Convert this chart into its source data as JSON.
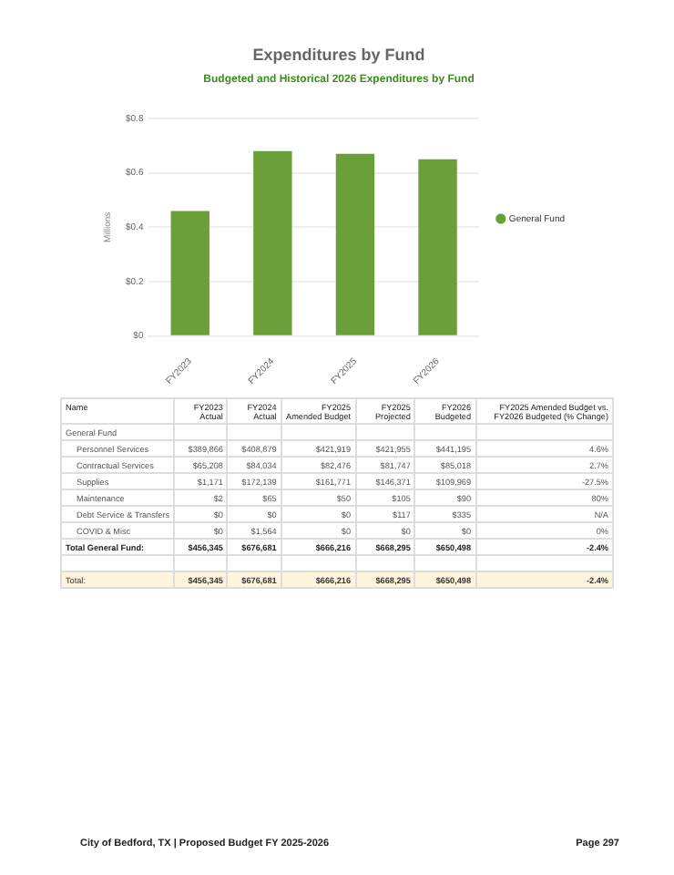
{
  "chart_data": [
    {
      "type": "bar",
      "title": "Expenditures by Fund",
      "subtitle": "Budgeted and Historical 2026 Expenditures by Fund",
      "ylabel": "Millions",
      "categories": [
        "FY2023",
        "FY2024",
        "FY2025",
        "FY2026"
      ],
      "series": [
        {
          "name": "General Fund",
          "color": "#6a9f3a",
          "values": [
            0.46,
            0.68,
            0.67,
            0.65
          ]
        }
      ],
      "ylim": [
        0,
        0.8
      ],
      "yticks": [
        {
          "value": 0,
          "label": "$0"
        },
        {
          "value": 0.2,
          "label": "$0.2"
        },
        {
          "value": 0.4,
          "label": "$0.4"
        },
        {
          "value": 0.6,
          "label": "$0.6"
        },
        {
          "value": 0.8,
          "label": "$0.8"
        }
      ],
      "grid": "y",
      "legend": "right"
    },
    {
      "type": "other",
      "categories": [
        "Name",
        "FY2023 Actual",
        "FY2024 Actual",
        "FY2025 Amended Budget",
        "FY2025 Projected",
        "FY2026 Budgeted",
        "FY2025 Amended Budget vs. FY2026 Budgeted (% Change)"
      ],
      "y_categories": [
        "General Fund",
        "Personnel Services",
        "Contractual Services",
        "Supplies",
        "Maintenance",
        "Debt Service & Transfers",
        "COVID & Misc",
        "Total General Fund:",
        null,
        "Total:"
      ],
      "cell_labels": [
        [
          null,
          null,
          null,
          null,
          null,
          null
        ],
        [
          "$389,866",
          "$408,879",
          "$421,919",
          "$421,955",
          "$441,195",
          "4.6%"
        ],
        [
          "$65,208",
          "$84,034",
          "$82,476",
          "$81,747",
          "$85,018",
          "2.7%"
        ],
        [
          "$1,171",
          "$172,139",
          "$161,771",
          "$146,371",
          "$109,969",
          "-27.5%"
        ],
        [
          "$2",
          "$65",
          "$50",
          "$105",
          "$90",
          "80%"
        ],
        [
          "$0",
          "$0",
          "$0",
          "$117",
          "$335",
          "N/A"
        ],
        [
          "$0",
          "$1,564",
          "$0",
          "$0",
          "$0",
          "0%"
        ],
        [
          "$456,345",
          "$676,681",
          "$666,216",
          "$668,295",
          "$650,498",
          "-2.4%"
        ],
        [
          null,
          null,
          null,
          null,
          null,
          null
        ],
        [
          "$456,345",
          "$676,681",
          "$666,216",
          "$668,295",
          "$650,498",
          "-2.4%"
        ]
      ],
      "annotations": [
        "City of Bedford, TX | Proposed Budget FY 2025-2026",
        "Page 297"
      ]
    }
  ]
}
